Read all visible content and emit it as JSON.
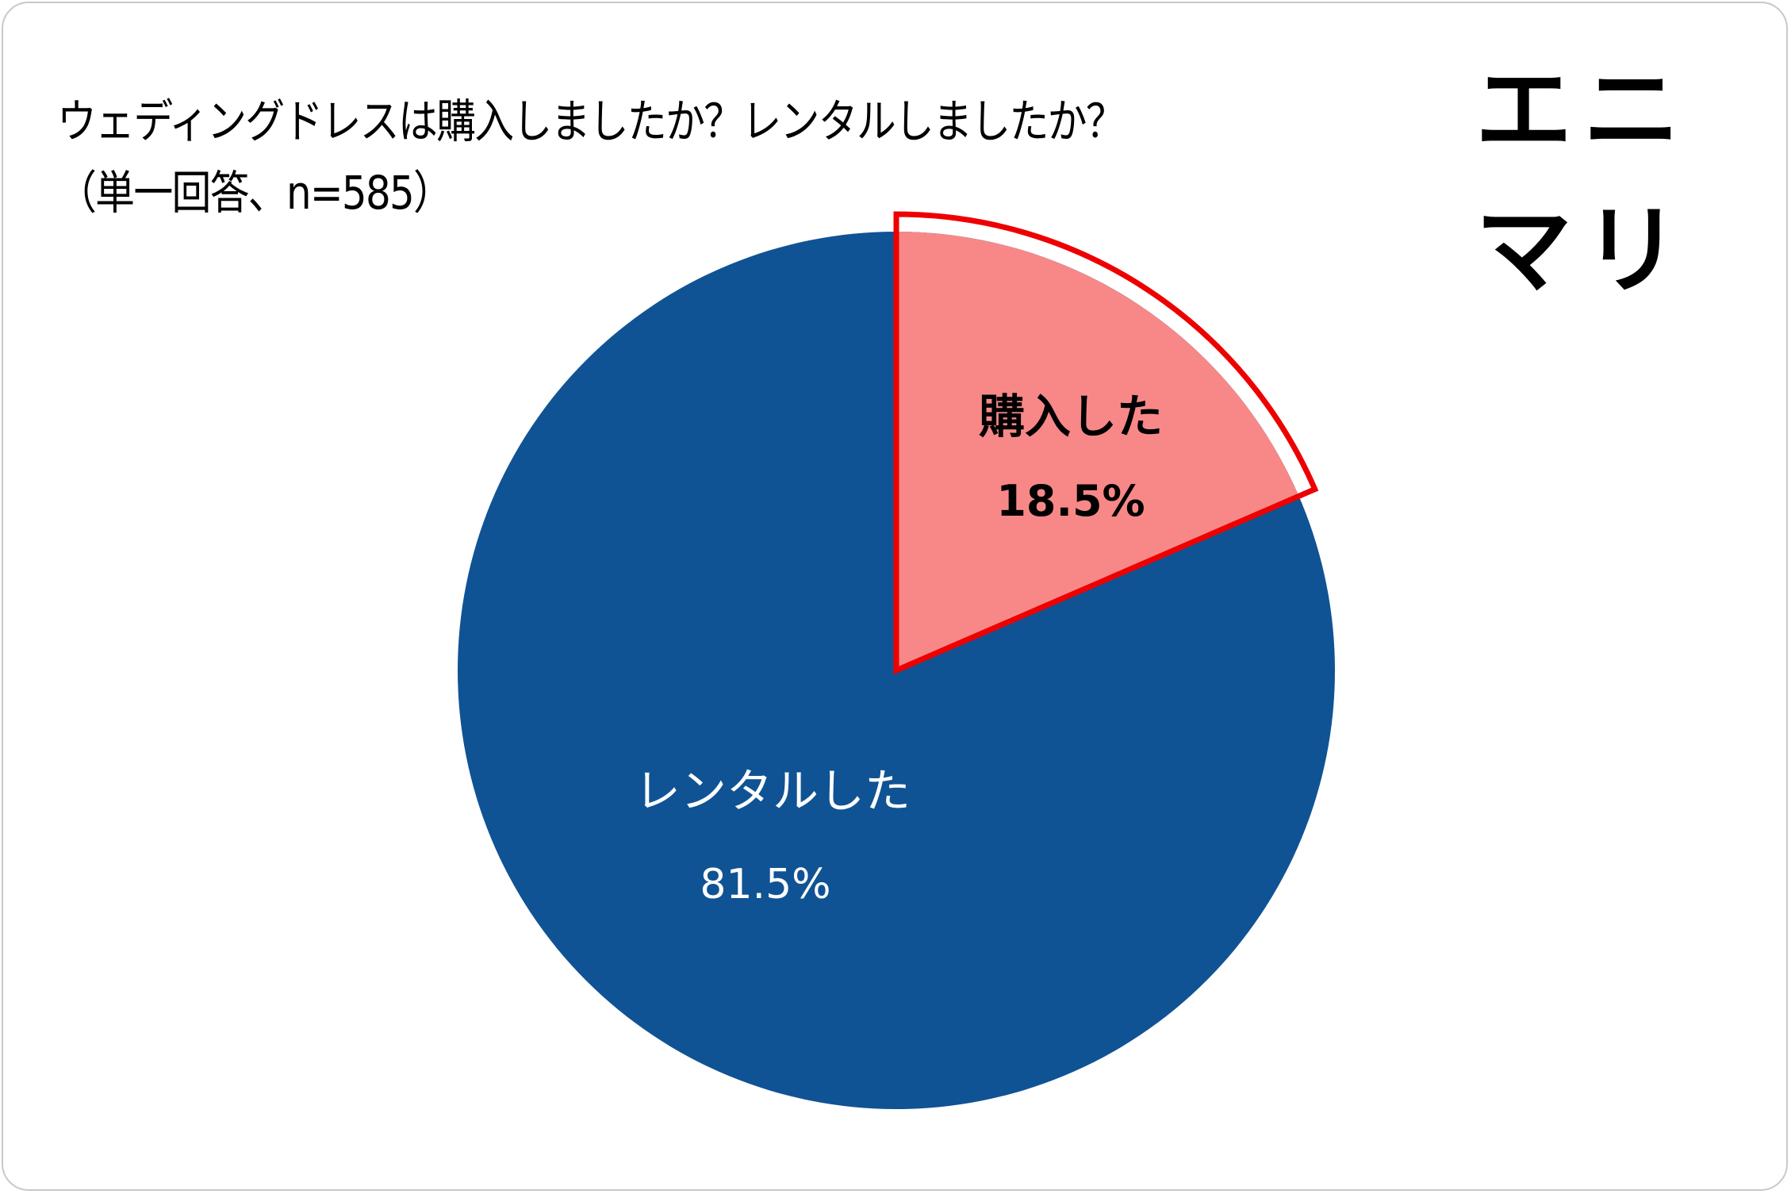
{
  "title": {
    "line1": "ウェディングドレスは購入しましたか？レンタルしましたか？",
    "line2": "（単一回答、n=585）"
  },
  "logo": "エニマリ",
  "colors": {
    "rental": "#0f5394",
    "purchase": "#f88888",
    "highlight_outline": "#ee0000"
  },
  "labels": {
    "purchase": "購入した",
    "purchase_pct": "18.5%",
    "rental": "レンタルした",
    "rental_pct": "81.5%"
  },
  "chart_data": {
    "type": "pie",
    "title": "ウェディングドレスは購入しましたか？レンタルしましたか？（単一回答、n=585）",
    "n": 585,
    "categories": [
      "購入した",
      "レンタルした"
    ],
    "values": [
      18.5,
      81.5
    ],
    "unit": "%",
    "start_angle": "12 o'clock, clockwise",
    "highlighted": "購入した",
    "legend": "none (labels inside slices)"
  }
}
